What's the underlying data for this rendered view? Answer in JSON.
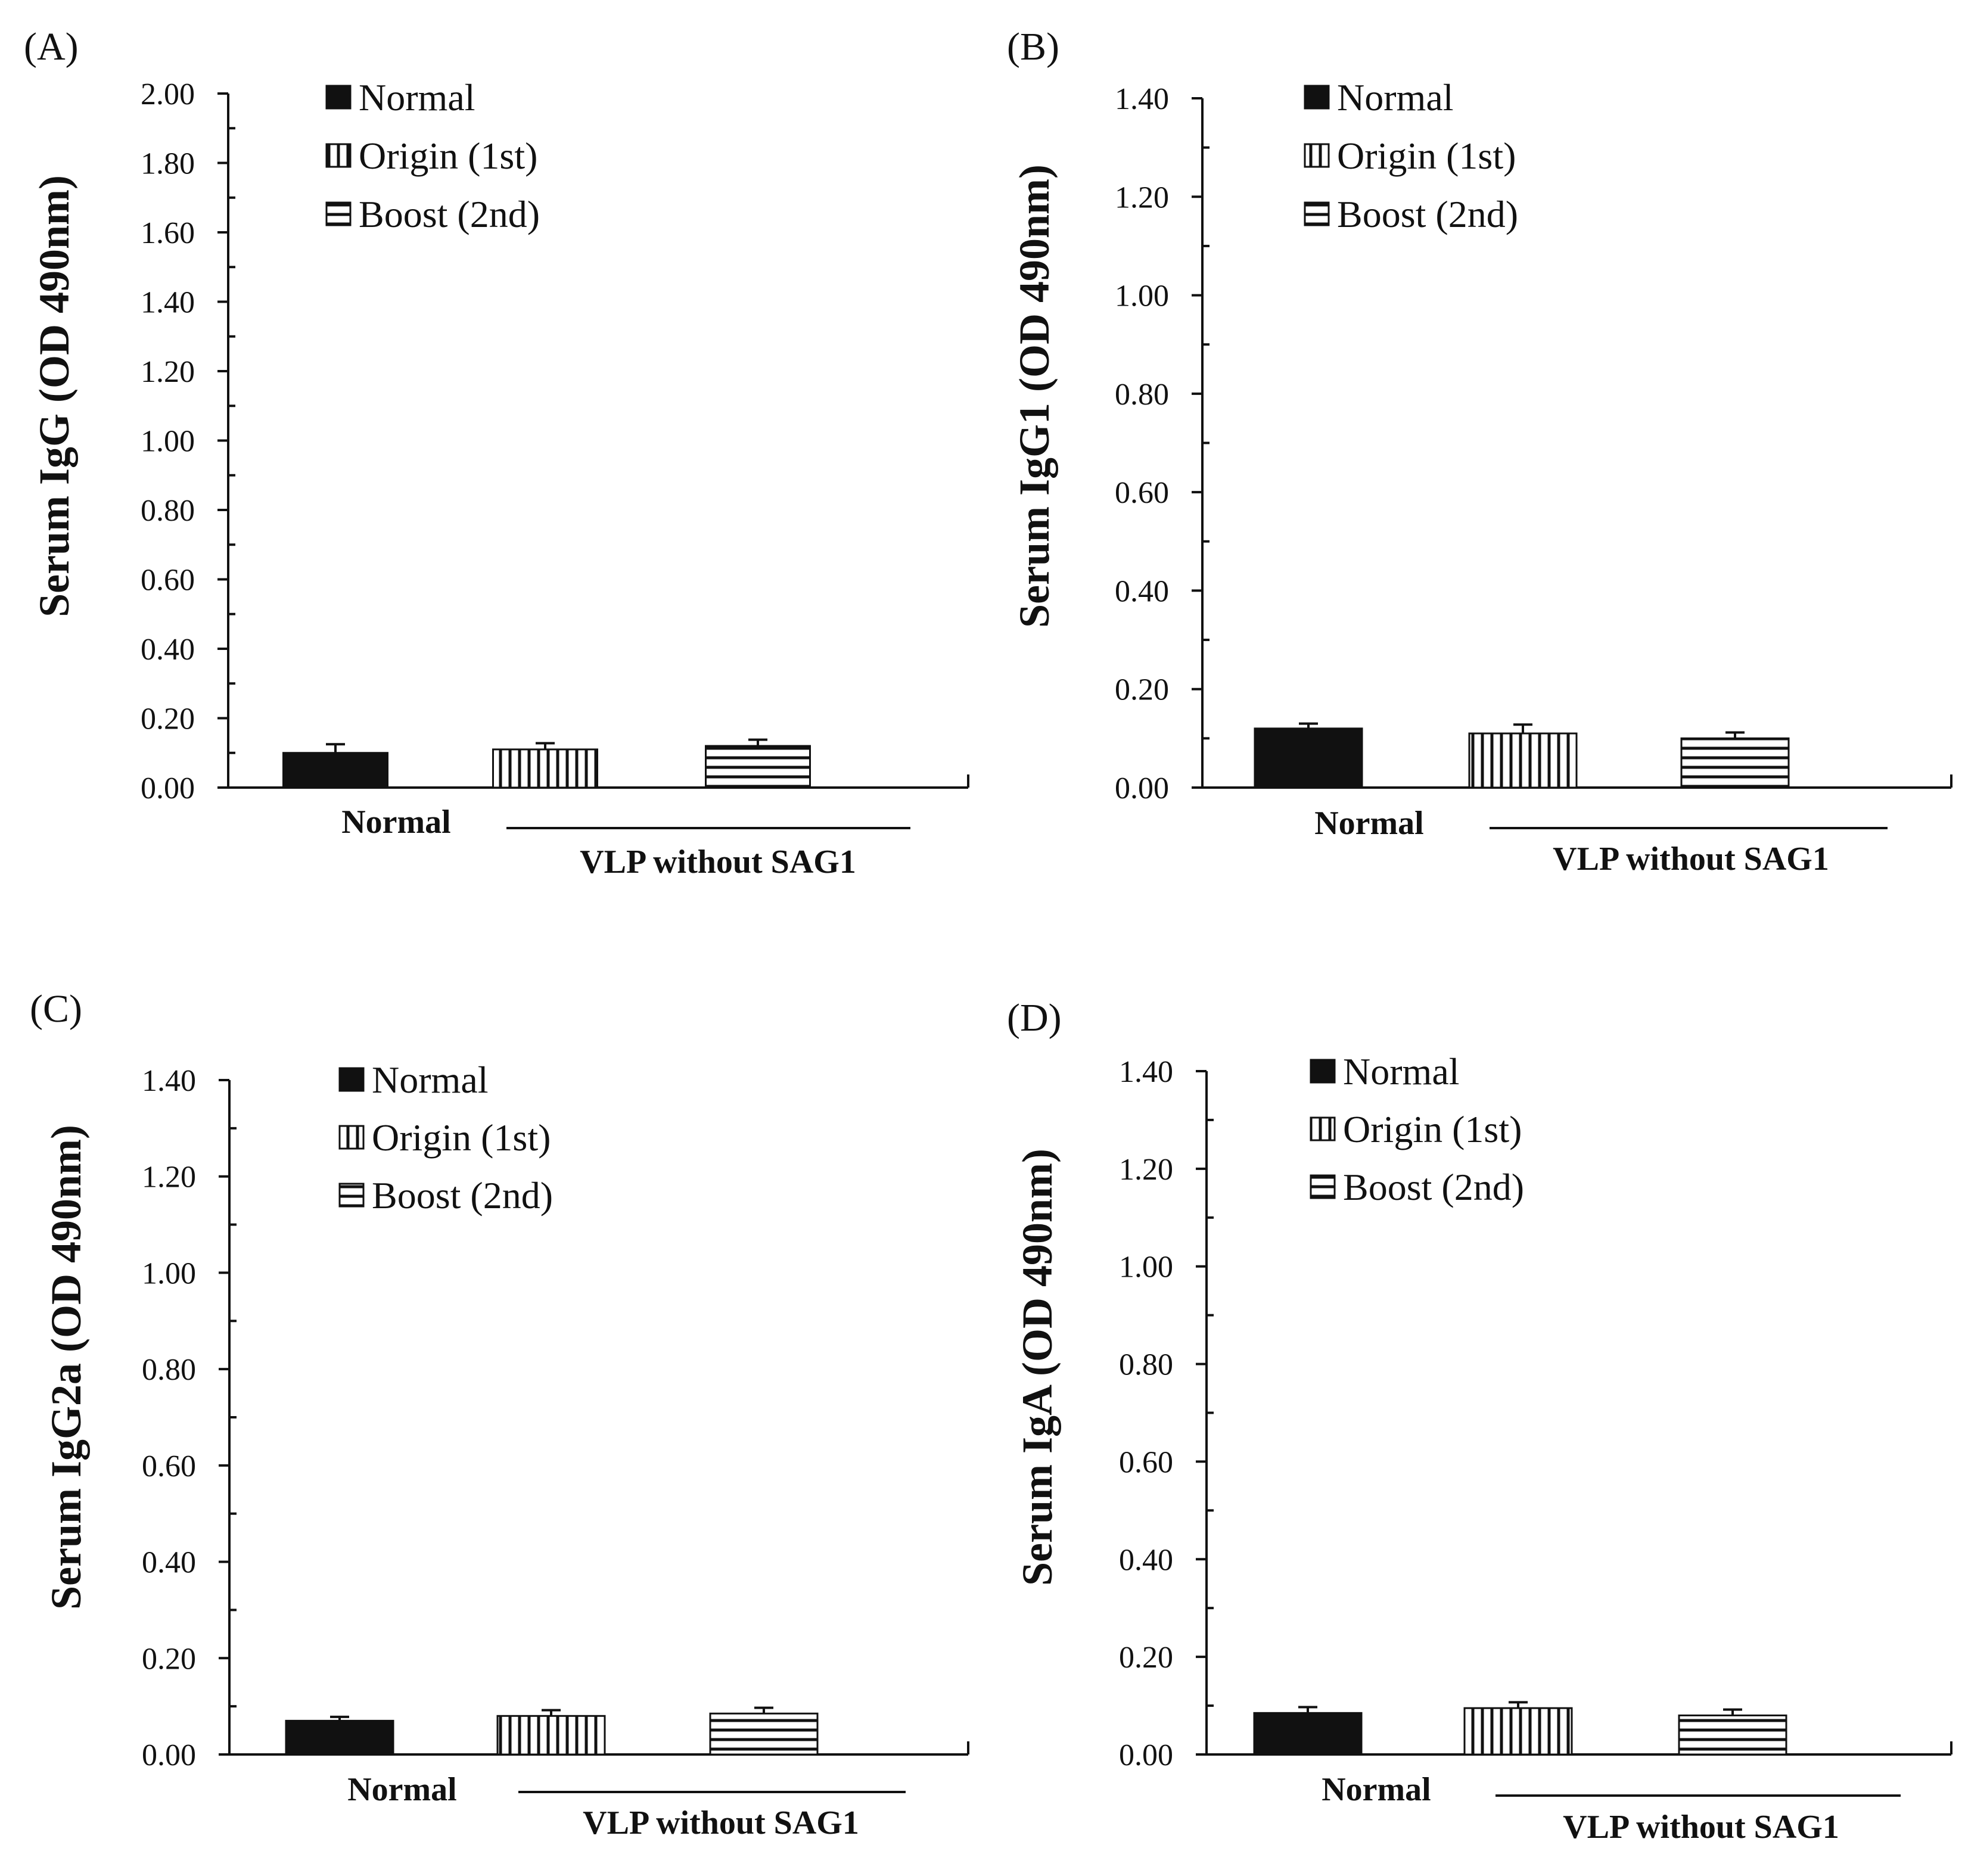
{
  "legend": [
    "Normal",
    "Origin (1st)",
    "Boost (2nd)"
  ],
  "chart_data": [
    {
      "type": "bar",
      "panel_label": "(A)",
      "ylabel": "Serum IgG (OD 490nm)",
      "ylim": [
        0,
        2.0
      ],
      "ytick_step": 0.2,
      "yticks": [
        "0.00",
        "0.20",
        "0.40",
        "0.60",
        "0.80",
        "1.00",
        "1.20",
        "1.40",
        "1.60",
        "1.80",
        "2.00"
      ],
      "series": [
        {
          "name": "Normal",
          "value": 0.1,
          "error": 0.025,
          "pattern": "solid"
        },
        {
          "name": "Origin (1st)",
          "value": 0.11,
          "error": 0.018,
          "pattern": "vertical"
        },
        {
          "name": "Boost (2nd)",
          "value": 0.12,
          "error": 0.018,
          "pattern": "horizontal"
        }
      ],
      "x_groups": [
        "Normal",
        "VLP without SAG1"
      ]
    },
    {
      "type": "bar",
      "panel_label": "(B)",
      "ylabel": "Serum IgG1 (OD 490nm)",
      "ylim": [
        0,
        1.4
      ],
      "ytick_step": 0.2,
      "yticks": [
        "0.00",
        "0.20",
        "0.40",
        "0.60",
        "0.80",
        "1.00",
        "1.20",
        "1.40"
      ],
      "series": [
        {
          "name": "Normal",
          "value": 0.12,
          "error": 0.01,
          "pattern": "solid"
        },
        {
          "name": "Origin (1st)",
          "value": 0.11,
          "error": 0.018,
          "pattern": "vertical"
        },
        {
          "name": "Boost (2nd)",
          "value": 0.1,
          "error": 0.012,
          "pattern": "horizontal"
        }
      ],
      "x_groups": [
        "Normal",
        "VLP without SAG1"
      ]
    },
    {
      "type": "bar",
      "panel_label": "(C)",
      "ylabel": "Serum IgG2a (OD 490nm)",
      "ylim": [
        0,
        1.4
      ],
      "ytick_step": 0.2,
      "yticks": [
        "0.00",
        "0.20",
        "0.40",
        "0.60",
        "0.80",
        "1.00",
        "1.20",
        "1.40"
      ],
      "series": [
        {
          "name": "Normal",
          "value": 0.07,
          "error": 0.008,
          "pattern": "solid"
        },
        {
          "name": "Origin (1st)",
          "value": 0.08,
          "error": 0.012,
          "pattern": "vertical"
        },
        {
          "name": "Boost (2nd)",
          "value": 0.085,
          "error": 0.012,
          "pattern": "horizontal"
        }
      ],
      "x_groups": [
        "Normal",
        "VLP without SAG1"
      ]
    },
    {
      "type": "bar",
      "panel_label": "(D)",
      "ylabel": "Serum IgA (OD 490nm)",
      "ylim": [
        0,
        1.4
      ],
      "ytick_step": 0.2,
      "yticks": [
        "0.00",
        "0.20",
        "0.40",
        "0.60",
        "0.80",
        "1.00",
        "1.20",
        "1.40"
      ],
      "series": [
        {
          "name": "Normal",
          "value": 0.085,
          "error": 0.012,
          "pattern": "solid"
        },
        {
          "name": "Origin (1st)",
          "value": 0.095,
          "error": 0.012,
          "pattern": "vertical"
        },
        {
          "name": "Boost (2nd)",
          "value": 0.08,
          "error": 0.012,
          "pattern": "horizontal"
        }
      ],
      "x_groups": [
        "Normal",
        "VLP without SAG1"
      ]
    }
  ]
}
